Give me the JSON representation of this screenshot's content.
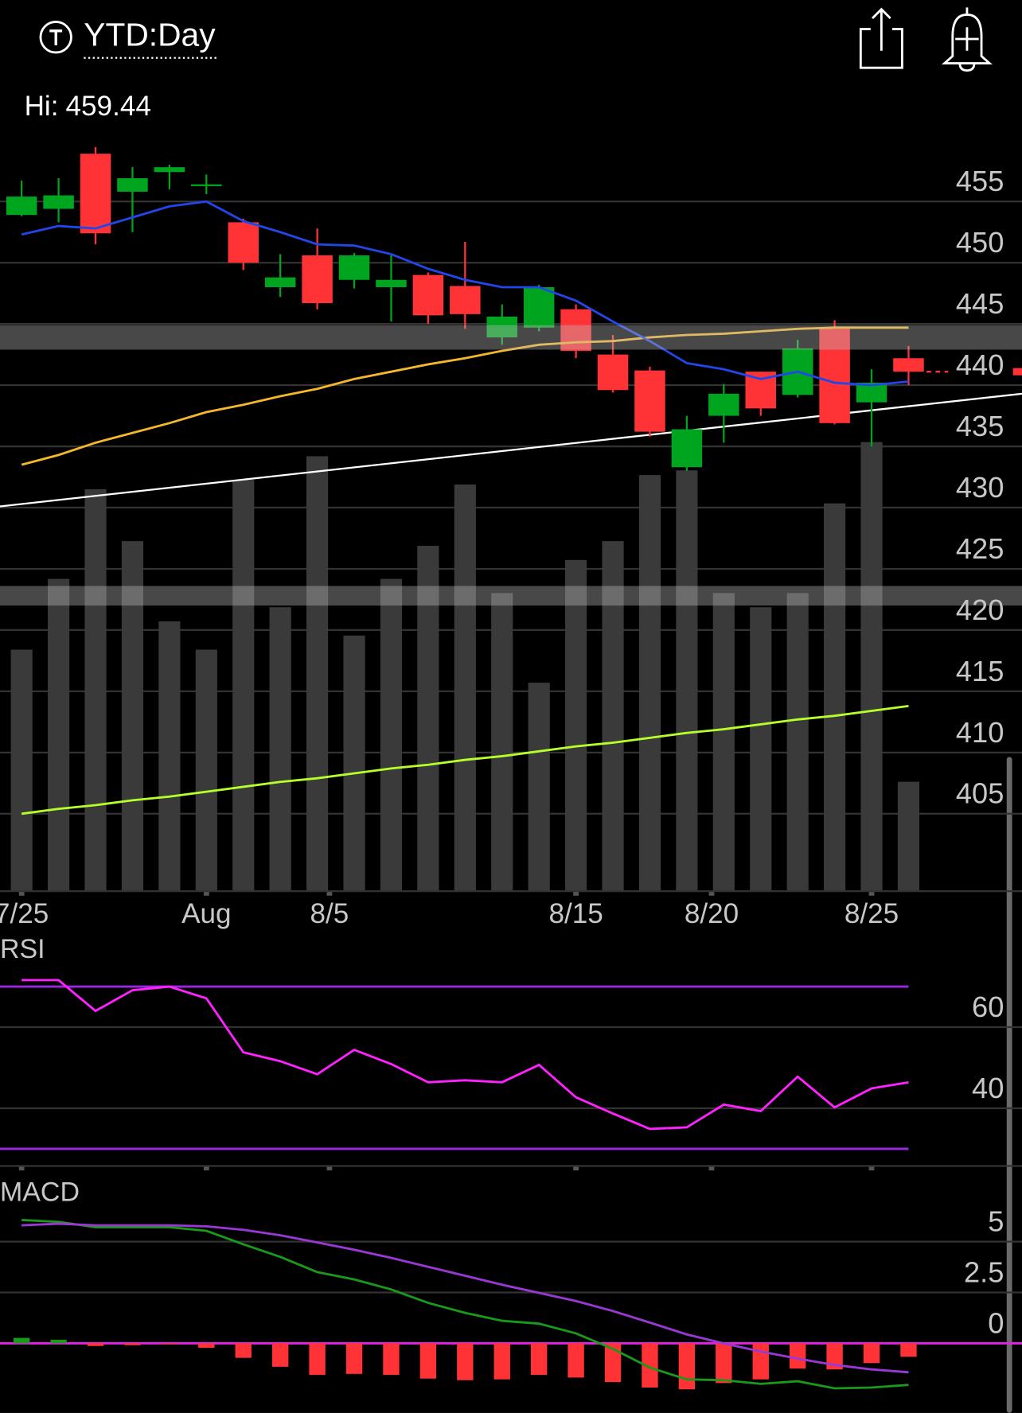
{
  "header": {
    "title": "YTD:Day",
    "hi_label": "Hi:",
    "hi": 459.44
  },
  "chart_data": [
    {
      "type": "candlestick",
      "x": [
        0,
        1,
        2,
        3,
        4,
        5,
        6,
        7,
        8,
        9,
        10,
        11,
        12,
        13,
        14,
        15,
        16,
        17,
        18,
        19,
        20,
        21,
        22,
        23,
        24
      ],
      "open": [
        453.9,
        454.4,
        458.9,
        455.8,
        457.4,
        456.3,
        453.3,
        448.0,
        450.6,
        448.6,
        448.0,
        449.0,
        448.1,
        443.9,
        444.7,
        446.2,
        442.5,
        441.2,
        433.3,
        437.5,
        441.1,
        439.2,
        444.6,
        438.6,
        442.2
      ],
      "high": [
        456.7,
        456.9,
        459.44,
        457.8,
        458.0,
        457.2,
        453.6,
        450.7,
        452.8,
        450.8,
        450.6,
        449.2,
        451.7,
        446.6,
        448.2,
        446.6,
        444.1,
        441.5,
        437.5,
        440.1,
        441.1,
        443.7,
        445.3,
        441.3,
        443.2
      ],
      "low": [
        453.8,
        453.3,
        451.5,
        452.5,
        456.0,
        455.6,
        449.4,
        447.2,
        446.2,
        447.9,
        445.2,
        445.0,
        444.6,
        443.3,
        444.4,
        442.2,
        439.4,
        435.8,
        433.0,
        435.3,
        437.5,
        439.0,
        436.8,
        435.0,
        440.0
      ],
      "close": [
        455.4,
        455.5,
        452.4,
        456.9,
        457.8,
        456.4,
        450.0,
        448.8,
        446.7,
        450.6,
        448.6,
        445.7,
        445.8,
        445.6,
        448.0,
        442.8,
        439.6,
        436.2,
        436.4,
        439.3,
        438.1,
        443.0,
        436.9,
        440.2,
        441.1
      ],
      "up_color": "#00a51f",
      "down_color": "#ff3236",
      "volume": [
        51,
        66,
        85,
        74,
        57,
        51,
        87,
        60,
        92,
        54,
        66,
        73,
        86,
        63,
        44,
        70,
        74,
        88,
        89,
        63,
        60,
        63,
        82,
        95,
        23
      ],
      "volume_ylim": [
        0,
        160
      ],
      "volume_color": "#3a3a3a",
      "series": [
        {
          "color": "#b6ff2a",
          "values": [
            405.0,
            405.4,
            405.7,
            406.1,
            406.4,
            406.8,
            407.2,
            407.6,
            407.9,
            408.3,
            408.7,
            409.0,
            409.4,
            409.7,
            410.1,
            410.5,
            410.8,
            411.2,
            411.6,
            411.9,
            412.3,
            412.7,
            413.0,
            413.4,
            413.8
          ]
        },
        {
          "color": "#f5b82a",
          "values": [
            433.5,
            434.3,
            435.3,
            436.1,
            436.9,
            437.8,
            438.4,
            439.1,
            439.7,
            440.5,
            441.1,
            441.7,
            442.2,
            442.8,
            443.3,
            443.5,
            443.6,
            443.9,
            444.1,
            444.2,
            444.4,
            444.6,
            444.7,
            444.7,
            444.7
          ]
        },
        {
          "color": "#2346e8",
          "values": [
            452.3,
            453.0,
            452.8,
            453.7,
            454.6,
            455.0,
            453.4,
            452.5,
            451.5,
            451.4,
            450.7,
            449.5,
            448.6,
            448.0,
            448.0,
            446.9,
            445.2,
            443.6,
            441.8,
            441.3,
            440.5,
            441.1,
            440.2,
            440.0,
            440.3
          ]
        }
      ],
      "trendline": {
        "x": [
          -0.585,
          27.07
        ],
        "values": [
          430.1,
          439.3
        ],
        "color": "#ffffff"
      },
      "bands": [
        [
          444.9,
          442.9
        ],
        [
          423.6,
          422.0
        ]
      ],
      "xlim": [
        -0.585,
        27.07
      ],
      "xticks": [
        {
          "value": 0,
          "label": "7/25"
        },
        {
          "value": 5,
          "label": "Aug"
        },
        {
          "value": 8.33,
          "label": "8/5"
        },
        {
          "value": 15,
          "label": "8/15"
        },
        {
          "value": 18.67,
          "label": "8/20"
        },
        {
          "value": 23,
          "label": "8/25"
        }
      ],
      "ylim": [
        398.75,
        460.4
      ],
      "yticks": [
        405,
        410,
        415,
        420,
        425,
        430,
        435,
        440,
        445,
        450,
        455
      ]
    },
    {
      "type": "line",
      "title": "RSI",
      "x": [
        0,
        1,
        2,
        3,
        4,
        5,
        6,
        7,
        8,
        9,
        10,
        11,
        12,
        13,
        14,
        15,
        16,
        17,
        18,
        19,
        20,
        21,
        22,
        23,
        24
      ],
      "values": [
        71.6,
        71.6,
        64.0,
        69.1,
        70.0,
        67.1,
        53.8,
        51.6,
        48.4,
        54.4,
        50.9,
        46.4,
        46.9,
        46.4,
        50.7,
        42.7,
        38.7,
        34.9,
        35.3,
        40.9,
        39.3,
        47.8,
        40.2,
        44.9,
        46.4
      ],
      "color": "#ff22ff",
      "levels": [
        70,
        30
      ],
      "level_color": "#9a28e0",
      "xlim": [
        -0.585,
        27.07
      ],
      "ylim": [
        26,
        82.2
      ],
      "yticks": [
        40,
        60
      ]
    },
    {
      "type": "macd",
      "title": "MACD",
      "x": [
        0,
        1,
        2,
        3,
        4,
        5,
        6,
        7,
        8,
        9,
        10,
        11,
        12,
        13,
        14,
        15,
        16,
        17,
        18,
        19,
        20,
        21,
        22,
        23,
        24
      ],
      "series": [
        {
          "color": "#1a9a1a",
          "values": [
            6.06,
            5.97,
            5.71,
            5.71,
            5.71,
            5.53,
            4.87,
            4.25,
            3.5,
            3.14,
            2.65,
            1.99,
            1.5,
            1.11,
            0.97,
            0.49,
            -0.27,
            -1.19,
            -1.77,
            -1.81,
            -1.99,
            -1.86,
            -2.21,
            -2.17,
            -2.04
          ]
        },
        {
          "color": "#9a38d6",
          "values": [
            5.8,
            5.88,
            5.8,
            5.8,
            5.8,
            5.75,
            5.58,
            5.31,
            4.96,
            4.6,
            4.2,
            3.76,
            3.32,
            2.88,
            2.48,
            2.08,
            1.59,
            1.02,
            0.44,
            0,
            -0.4,
            -0.75,
            -1.06,
            -1.28,
            -1.42
          ]
        }
      ],
      "histogram": [
        0.27,
        0.18,
        -0.13,
        -0.09,
        -0.04,
        -0.22,
        -0.71,
        -1.15,
        -1.55,
        -1.5,
        -1.55,
        -1.73,
        -1.81,
        -1.77,
        -1.55,
        -1.68,
        -1.9,
        -2.17,
        -2.26,
        -1.95,
        -1.77,
        -1.24,
        -1.28,
        -0.97,
        -0.66
      ],
      "up_color": "#1a9a1a",
      "down_color": "#ff3236",
      "zero_color": "#e61ee6",
      "xlim": [
        -0.585,
        27.07
      ],
      "ylim": [
        -3.41,
        8.01
      ],
      "yticks": [
        0,
        2.5,
        5
      ]
    }
  ]
}
